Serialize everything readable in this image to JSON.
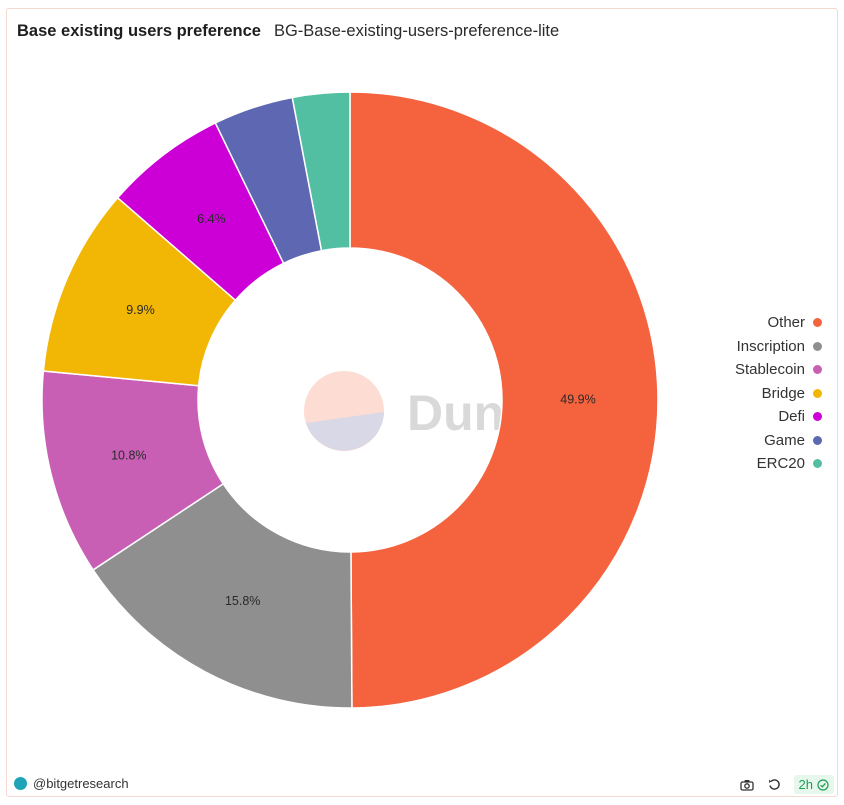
{
  "header": {
    "title": "Base existing users preference",
    "subtitle": "BG-Base-existing-users-preference-lite"
  },
  "watermark": "Dune",
  "footer": {
    "author": "@bitgetresearch",
    "refresh_label": "2h"
  },
  "icons": {
    "author_avatar": "bitget-avatar-icon",
    "screenshot": "camera-icon",
    "refresh": "refresh-icon",
    "fresh": "check-circle-icon"
  },
  "chart_data": {
    "type": "pie",
    "donut": true,
    "legend_position": "right",
    "slices": [
      {
        "name": "Other",
        "value": 49.9,
        "label": "49.9%",
        "color": "#f4623e"
      },
      {
        "name": "Inscription",
        "value": 15.8,
        "label": "15.8%",
        "color": "#8f8f8f"
      },
      {
        "name": "Stablecoin",
        "value": 10.8,
        "label": "10.8%",
        "color": "#c95fb5"
      },
      {
        "name": "Bridge",
        "value": 9.9,
        "label": "9.9%",
        "color": "#f2b705"
      },
      {
        "name": "Defi",
        "value": 6.4,
        "label": "6.4%",
        "color": "#cc00d6"
      },
      {
        "name": "Game",
        "value": 4.2,
        "label": "",
        "color": "#5e67b1"
      },
      {
        "name": "ERC20",
        "value": 3.0,
        "label": "",
        "color": "#52bfa3"
      }
    ]
  }
}
